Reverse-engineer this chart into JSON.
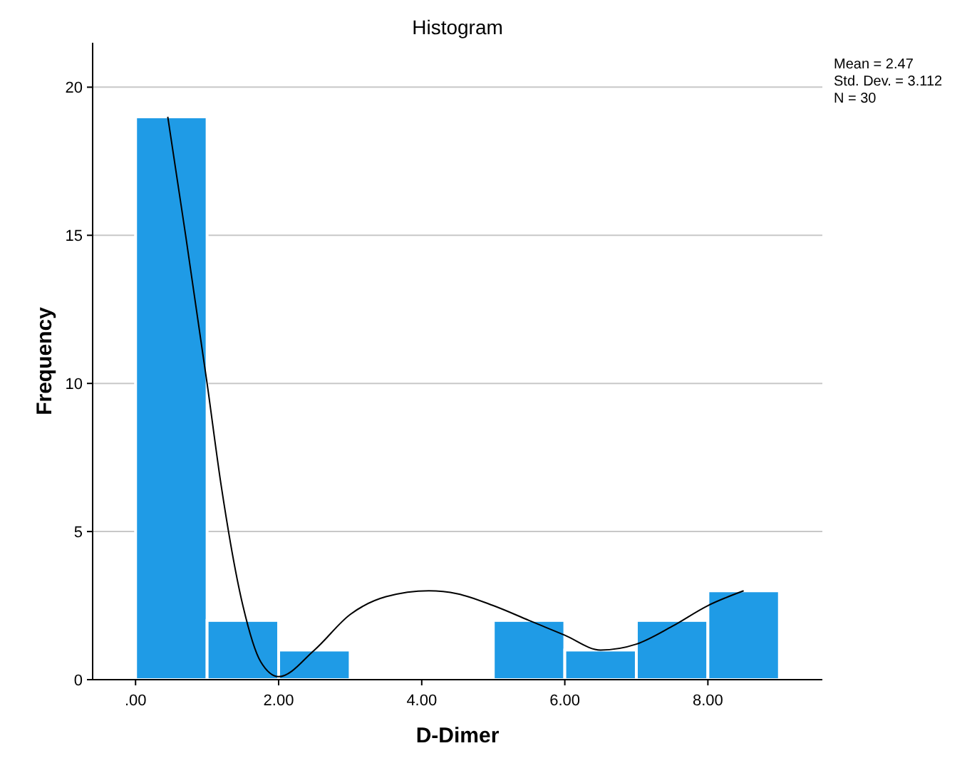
{
  "chart_data": {
    "type": "histogram",
    "title": "Histogram",
    "xlabel": "D-Dimer",
    "ylabel": "Frequency",
    "bins": [
      0,
      1,
      2,
      3,
      4,
      5,
      6,
      7,
      8,
      9
    ],
    "series": [
      {
        "color": "#1f9be6",
        "values": [
          19,
          2,
          1,
          0,
          0,
          2,
          1,
          2,
          3
        ]
      },
      {
        "type": "line",
        "color": "#000000",
        "x": [
          0.45,
          0.7,
          1,
          1.2,
          1.5,
          1.75,
          2,
          2.5,
          3,
          3.5,
          4.1,
          4.5,
          5,
          5.5,
          6,
          6.5,
          7,
          7.5,
          8,
          8.5
        ],
        "values": [
          19,
          15,
          10,
          6.5,
          2.5,
          0.6,
          0.1,
          1,
          2.2,
          2.8,
          3,
          2.9,
          2.5,
          2,
          1.5,
          1,
          1.2,
          1.8,
          2.5,
          3
        ]
      }
    ],
    "xlim": [
      -0.6,
      9.6
    ],
    "ylim": [
      0,
      21.5
    ],
    "xticks": [
      {
        "value": 0,
        "label": ".00"
      },
      {
        "value": 2,
        "label": "2.00"
      },
      {
        "value": 4,
        "label": "4.00"
      },
      {
        "value": 6,
        "label": "6.00"
      },
      {
        "value": 8,
        "label": "8.00"
      }
    ],
    "yticks": [
      0,
      5,
      10,
      15,
      20
    ],
    "grid": "y",
    "marker": "none",
    "line_style": "solid",
    "annotations": [
      "Mean = 2.47",
      "Std. Dev. = 3.112",
      "N = 30"
    ]
  }
}
